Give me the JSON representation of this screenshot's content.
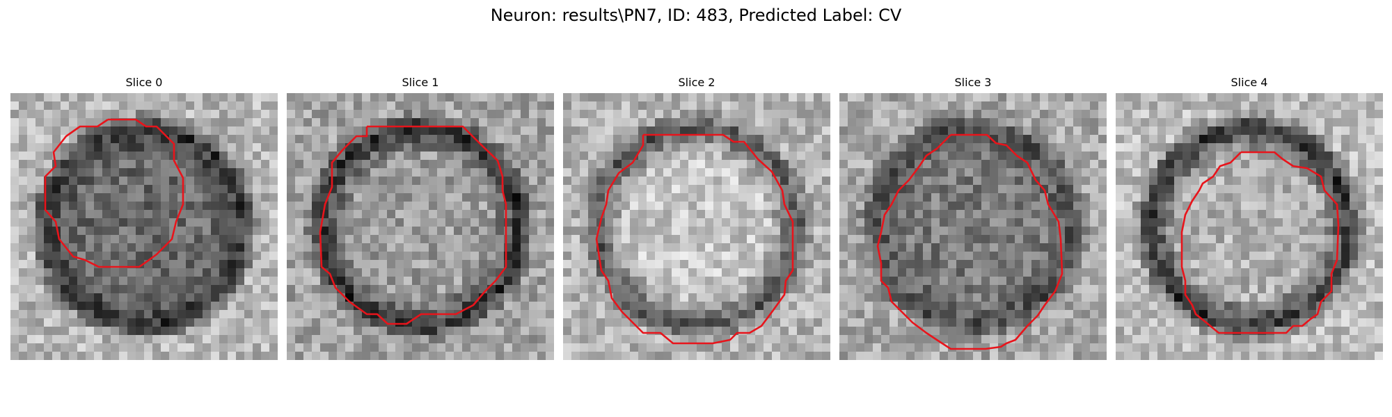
{
  "figure": {
    "title": "Neuron: results\\PN7, ID: 483, Predicted Label: CV",
    "contour_color": "#e8141b"
  },
  "panels": [
    {
      "title": "Slice 0",
      "seed": 11,
      "center_lum": 0.42,
      "ring_lum": 0.2,
      "bg_lum": 0.72
    },
    {
      "title": "Slice 1",
      "seed": 23,
      "center_lum": 0.62,
      "ring_lum": 0.18,
      "bg_lum": 0.64
    },
    {
      "title": "Slice 2",
      "seed": 37,
      "center_lum": 0.78,
      "ring_lum": 0.32,
      "bg_lum": 0.7
    },
    {
      "title": "Slice 3",
      "seed": 41,
      "center_lum": 0.48,
      "ring_lum": 0.3,
      "bg_lum": 0.66
    },
    {
      "title": "Slice 4",
      "seed": 53,
      "center_lum": 0.7,
      "ring_lum": 0.18,
      "bg_lum": 0.74
    }
  ]
}
